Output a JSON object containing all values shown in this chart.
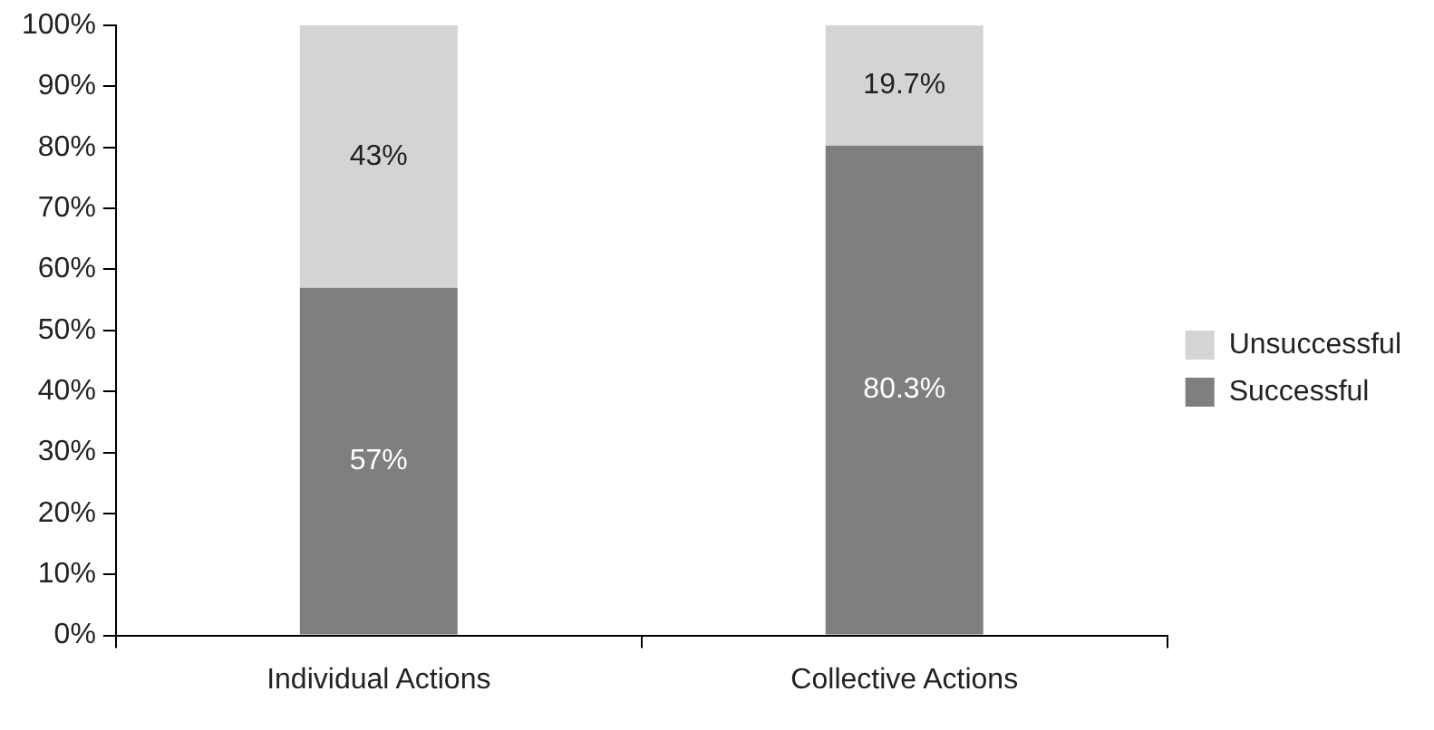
{
  "chart_data": {
    "type": "bar",
    "stacked": true,
    "categories": [
      "Individual Actions",
      "Collective Actions"
    ],
    "series": [
      {
        "name": "Successful",
        "color": "#7f7f7f",
        "values": [
          57,
          80.3
        ],
        "value_labels": [
          "57%",
          "80.3%"
        ]
      },
      {
        "name": "Unsuccessful",
        "color": "#d4d4d4",
        "values": [
          43,
          19.7
        ],
        "value_labels": [
          "43%",
          "19.7%"
        ]
      }
    ],
    "ylim": [
      0,
      100
    ],
    "yticks": [
      {
        "value": 0,
        "label": "0%"
      },
      {
        "value": 10,
        "label": "10%"
      },
      {
        "value": 20,
        "label": "20%"
      },
      {
        "value": 30,
        "label": "30%"
      },
      {
        "value": 40,
        "label": "40%"
      },
      {
        "value": 50,
        "label": "50%"
      },
      {
        "value": 60,
        "label": "60%"
      },
      {
        "value": 70,
        "label": "70%"
      },
      {
        "value": 80,
        "label": "80%"
      },
      {
        "value": 90,
        "label": "90%"
      },
      {
        "value": 100,
        "label": "100%"
      }
    ],
    "grid": false,
    "legend": "right"
  }
}
